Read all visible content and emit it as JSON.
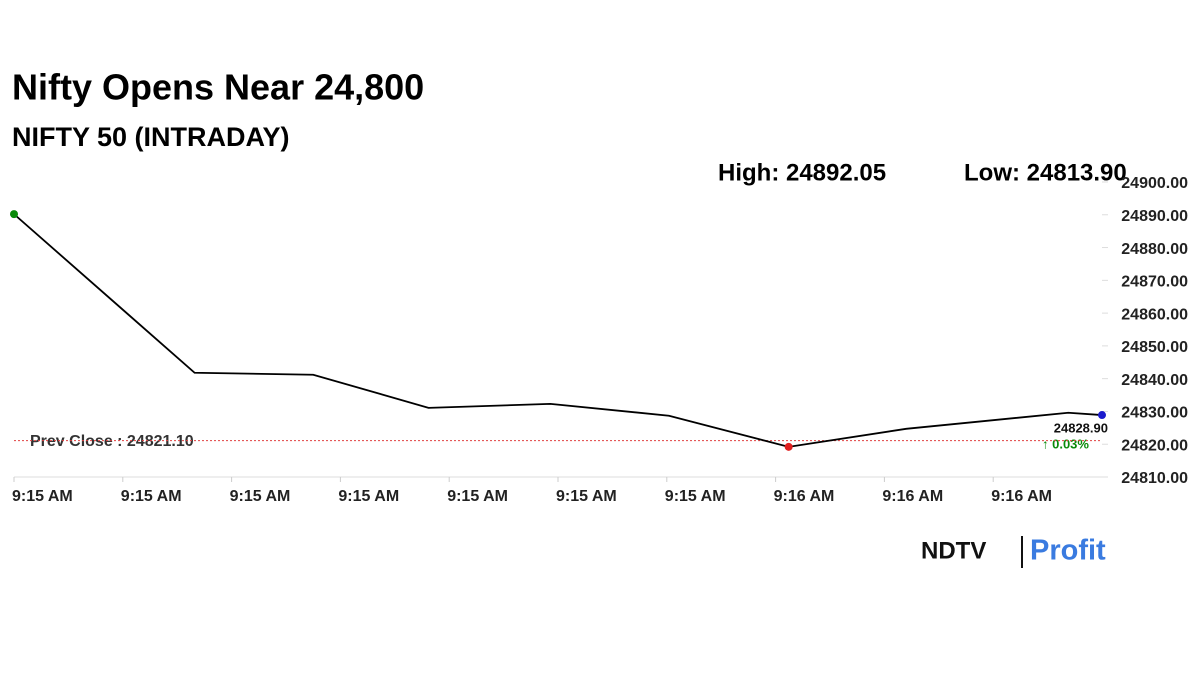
{
  "chart_data": {
    "type": "line",
    "title": "Nifty Opens Near 24,800",
    "subtitle": "NIFTY 50 (INTRADAY)",
    "high_label": "High: 24892.05",
    "low_label": "Low: 24813.90",
    "prev_close_label": "Prev Close : 24821.10",
    "prev_close": 24821.1,
    "change_label": "↑ 0.03%",
    "x": [
      0,
      1.66,
      2.75,
      3.81,
      4.93,
      6.02,
      7.12,
      8.2,
      9.69,
      10
    ],
    "values": [
      24890.2,
      24841.8,
      24841.2,
      24831.1,
      24832.3,
      24828.7,
      24819.2,
      24824.7,
      24829.6,
      24828.9
    ],
    "value_labels": [
      null,
      null,
      null,
      null,
      null,
      null,
      null,
      null,
      null,
      "24828.90"
    ],
    "marker_colors": [
      "#0a8a0a",
      null,
      null,
      null,
      null,
      null,
      "#e02020",
      null,
      null,
      "#1a1acc"
    ],
    "color": "#000000",
    "xlim": [
      0,
      10
    ],
    "xticks": [
      {
        "value": 0,
        "label": "9:15 AM"
      },
      {
        "value": 1,
        "label": "9:15 AM"
      },
      {
        "value": 2,
        "label": "9:15 AM"
      },
      {
        "value": 3,
        "label": "9:15 AM"
      },
      {
        "value": 4,
        "label": "9:15 AM"
      },
      {
        "value": 5,
        "label": "9:15 AM"
      },
      {
        "value": 6,
        "label": "9:15 AM"
      },
      {
        "value": 7,
        "label": "9:16 AM"
      },
      {
        "value": 8,
        "label": "9:16 AM"
      },
      {
        "value": 9,
        "label": "9:16 AM"
      }
    ],
    "ylim": [
      24810,
      24900
    ],
    "yticks": [
      {
        "value": 24900,
        "label": "24900.00"
      },
      {
        "value": 24890,
        "label": "24890.00"
      },
      {
        "value": 24880,
        "label": "24880.00"
      },
      {
        "value": 24870,
        "label": "24870.00"
      },
      {
        "value": 24860,
        "label": "24860.00"
      },
      {
        "value": 24850,
        "label": "24850.00"
      },
      {
        "value": 24840,
        "label": "24840.00"
      },
      {
        "value": 24830,
        "label": "24830.00"
      },
      {
        "value": 24820,
        "label": "24820.00"
      },
      {
        "value": 24810,
        "label": "24810.00"
      }
    ],
    "logo": {
      "left": "NDTV",
      "right": "Profit"
    }
  }
}
